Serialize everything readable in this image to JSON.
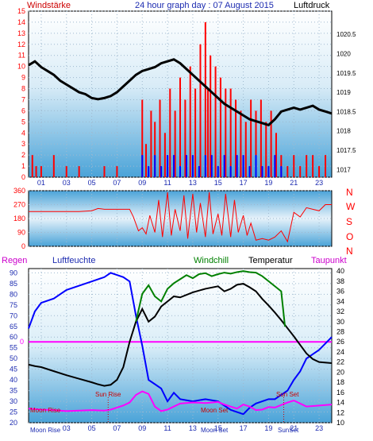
{
  "header": {
    "left_label": "Windstärke",
    "title": "24 hour graph day : 07 August 2015",
    "right_label": "Luftdruck"
  },
  "colors": {
    "red": "#ff0000",
    "blue": "#0000ff",
    "black": "#000000",
    "green": "#008000",
    "magenta": "#ff00ff",
    "axis_blue": "#1c2bb0"
  },
  "chart_data": [
    {
      "type": "line",
      "title": "24 hour graph day : 07 August 2015",
      "y_left_label": "Windstärke",
      "y_right_label": "Luftdruck",
      "x_ticks": [
        "01",
        "03",
        "05",
        "07",
        "09",
        "11",
        "13",
        "15",
        "17",
        "19",
        "21",
        "23"
      ],
      "y_left_ticks": [
        0,
        1,
        2,
        3,
        4,
        5,
        6,
        7,
        8,
        9,
        10,
        11,
        12,
        13,
        14,
        15
      ],
      "ylim_left": [
        0,
        15
      ],
      "y_right_ticks": [
        1017,
        1017.5,
        1018,
        1018.5,
        1019,
        1019.5,
        1020,
        1020.5
      ],
      "ylim_right": [
        1016.8,
        1021.1
      ],
      "xlim": [
        0,
        24
      ],
      "grid": true,
      "series": [
        {
          "role": "pressure",
          "color": "#000000",
          "axis": "right",
          "x": [
            0,
            0.5,
            1,
            1.5,
            2,
            2.5,
            3,
            3.5,
            4,
            4.5,
            5,
            5.5,
            6,
            6.5,
            7,
            7.5,
            8,
            8.5,
            9,
            9.5,
            10,
            10.5,
            11,
            11.5,
            12,
            12.5,
            13,
            13.5,
            14,
            14.5,
            15,
            15.5,
            16,
            16.5,
            17,
            17.5,
            18,
            18.5,
            19,
            19.5,
            20,
            20.5,
            21,
            21.5,
            22,
            22.5,
            23,
            23.5,
            24
          ],
          "y": [
            1019.7,
            1019.8,
            1019.65,
            1019.55,
            1019.45,
            1019.3,
            1019.2,
            1019.1,
            1019.0,
            1018.95,
            1018.85,
            1018.82,
            1018.85,
            1018.9,
            1019.0,
            1019.15,
            1019.3,
            1019.45,
            1019.55,
            1019.6,
            1019.65,
            1019.75,
            1019.8,
            1019.85,
            1019.75,
            1019.6,
            1019.45,
            1019.3,
            1019.15,
            1019.0,
            1018.85,
            1018.7,
            1018.6,
            1018.5,
            1018.4,
            1018.3,
            1018.25,
            1018.2,
            1018.15,
            1018.3,
            1018.5,
            1018.55,
            1018.6,
            1018.55,
            1018.6,
            1018.65,
            1018.55,
            1018.5,
            1018.45
          ]
        },
        {
          "role": "wind-gust",
          "color": "#ff0000",
          "axis": "left",
          "x": [
            0.3,
            0.6,
            1,
            2,
            3,
            4,
            5,
            6,
            7,
            8,
            9,
            9.3,
            9.7,
            10,
            10.4,
            10.8,
            11.2,
            11.6,
            12,
            12.4,
            12.8,
            13.2,
            13.6,
            14,
            14.2,
            14.4,
            14.8,
            15.2,
            15.6,
            16,
            16.4,
            16.8,
            17.2,
            17.6,
            18,
            18.4,
            18.8,
            19.2,
            19.6,
            20,
            20.5,
            21,
            21.5,
            22,
            22.5,
            23,
            23.5
          ],
          "y": [
            2,
            1,
            1,
            2,
            1,
            1,
            0,
            1,
            1,
            0,
            7,
            3,
            6,
            5,
            7,
            4,
            8,
            6,
            9,
            7,
            10,
            8,
            12,
            14,
            8,
            11,
            10,
            9,
            8,
            8,
            7,
            6,
            5,
            7,
            6,
            7,
            5,
            6,
            4,
            2,
            1,
            2,
            1,
            2,
            2,
            1,
            2
          ]
        },
        {
          "role": "wind-speed",
          "color": "#0000ff",
          "axis": "left",
          "x": [
            9,
            9.5,
            10,
            10.5,
            11,
            11.5,
            12,
            12.5,
            13,
            13.5,
            14,
            14.5,
            15,
            15.5,
            16,
            16.5,
            17,
            17.5,
            18,
            18.5,
            19,
            19.5,
            20,
            20.5,
            21
          ],
          "y": [
            2,
            1,
            2,
            1,
            2,
            2,
            1,
            2,
            2,
            1,
            2,
            2,
            1,
            2,
            1,
            2,
            2,
            1,
            2,
            1,
            1,
            2,
            1,
            0,
            0
          ]
        }
      ]
    },
    {
      "type": "line",
      "title": "",
      "y_left_ticks": [
        0,
        90,
        180,
        270,
        360
      ],
      "ylim": [
        0,
        360
      ],
      "right_labels": [
        "N",
        "W",
        "S",
        "O",
        "N"
      ],
      "x_ticks": [],
      "xlim": [
        0,
        24
      ],
      "grid": true,
      "series": [
        {
          "role": "wind-direction",
          "color": "#ff0000",
          "x": [
            0,
            1,
            2,
            3,
            4,
            5,
            5.5,
            6,
            7,
            8,
            8.3,
            8.7,
            9,
            9.3,
            9.6,
            10,
            10.3,
            10.6,
            11,
            11.3,
            11.6,
            12,
            12.3,
            12.6,
            13,
            13.3,
            13.6,
            14,
            14.3,
            14.6,
            15,
            15.3,
            15.6,
            16,
            16.3,
            16.6,
            17,
            17.3,
            17.6,
            18,
            18.5,
            19,
            19.5,
            20,
            20.5,
            21,
            21.5,
            22,
            22.5,
            23,
            23.5,
            24
          ],
          "y": [
            225,
            225,
            225,
            225,
            225,
            230,
            245,
            240,
            240,
            240,
            190,
            100,
            120,
            80,
            200,
            90,
            300,
            60,
            350,
            70,
            240,
            100,
            330,
            50,
            340,
            90,
            280,
            60,
            350,
            80,
            210,
            70,
            340,
            60,
            300,
            90,
            200,
            70,
            150,
            40,
            50,
            40,
            60,
            100,
            30,
            220,
            190,
            250,
            240,
            230,
            270,
            270
          ]
        }
      ]
    },
    {
      "type": "line",
      "title": "",
      "labels": [
        "Regen",
        "Luftfeuchte",
        "Windchill",
        "Temperatur",
        "Taupunkt"
      ],
      "left_ticks": [
        20,
        25,
        30,
        35,
        40,
        45,
        50,
        55,
        60,
        65,
        70,
        75,
        80,
        85,
        90
      ],
      "ylim_left": [
        20,
        92
      ],
      "right_ticks": [
        10,
        12,
        14,
        16,
        18,
        20,
        22,
        24,
        26,
        28,
        30,
        32,
        34,
        36,
        38,
        40
      ],
      "ylim_right": [
        10,
        40.5
      ],
      "rain_label": "0",
      "x_ticks": [
        "03",
        "05",
        "07",
        "09",
        "11",
        "13",
        "15",
        "17",
        "19",
        "21",
        "23"
      ],
      "xlim": [
        0,
        24
      ],
      "grid": true,
      "annotations": [
        "Sun Rise",
        "Sun Set",
        "Moon Rise",
        "Moon Set",
        "Moon Rise",
        "Moon Set",
        "Sun Rise",
        "Sun Set"
      ],
      "series": [
        {
          "name": "Luftfeuchte",
          "color": "#0000ff",
          "axis": "left",
          "x": [
            0,
            0.5,
            1,
            2,
            3,
            4,
            5,
            6,
            6.5,
            7,
            7.5,
            8,
            8.5,
            9,
            9.5,
            10,
            10.5,
            11,
            11.5,
            12,
            13,
            14,
            15,
            15.5,
            16,
            16.5,
            17,
            17.5,
            18,
            18.5,
            19,
            19.5,
            20,
            20.5,
            21,
            21.5,
            22,
            23,
            24
          ],
          "y": [
            64,
            72,
            76,
            78,
            82,
            84,
            86,
            88,
            90,
            89,
            88,
            86,
            70,
            56,
            40,
            38,
            36,
            30,
            34,
            31,
            30,
            31,
            30,
            28,
            26,
            25,
            24,
            27,
            29,
            30,
            31,
            31,
            33,
            35,
            40,
            44,
            50,
            54,
            60
          ]
        },
        {
          "name": "Temperatur",
          "color": "#000000",
          "axis": "right",
          "x": [
            0,
            0.5,
            1,
            2,
            3,
            4,
            5,
            5.5,
            6,
            6.5,
            7,
            7.5,
            8,
            8.5,
            9,
            9.5,
            10,
            10.5,
            11,
            11.5,
            12,
            13,
            14,
            15,
            15.5,
            16,
            16.5,
            17,
            17.5,
            18,
            18.5,
            19,
            19.5,
            20,
            20.5,
            21,
            21.5,
            22,
            22.5,
            23,
            24
          ],
          "y": [
            21.5,
            21.2,
            21.0,
            20.2,
            19.4,
            18.7,
            18.0,
            17.6,
            17.3,
            17.5,
            18.5,
            21.0,
            26.0,
            30.0,
            32.5,
            30.0,
            31.0,
            33.0,
            34.0,
            35.0,
            34.8,
            35.8,
            36.5,
            37.0,
            36.0,
            36.5,
            37.3,
            37.5,
            36.8,
            36.0,
            34.5,
            33.2,
            31.8,
            30.3,
            28.7,
            27.1,
            25.4,
            23.7,
            22.6,
            22.0,
            21.8
          ]
        },
        {
          "name": "Windchill",
          "color": "#008000",
          "axis": "right",
          "x": [
            8.5,
            9,
            9.5,
            10,
            10.5,
            11,
            11.5,
            12,
            12.5,
            13,
            13.5,
            14,
            14.5,
            15,
            15.5,
            16,
            16.5,
            17,
            17.5,
            18,
            18.5,
            19,
            19.5,
            20,
            20.3
          ],
          "y": [
            30.0,
            35.5,
            37.2,
            35.0,
            34.0,
            36.5,
            37.6,
            38.4,
            39.2,
            38.6,
            39.4,
            39.6,
            39.0,
            39.4,
            39.7,
            39.5,
            39.8,
            40.0,
            39.8,
            39.7,
            39.0,
            38.0,
            37.0,
            36.0,
            29.0
          ]
        },
        {
          "name": "Taupunkt",
          "color": "#ff00ff",
          "axis": "right",
          "x": [
            0,
            1,
            2,
            3,
            4,
            5,
            6,
            6.5,
            7,
            7.5,
            8,
            8.5,
            9,
            9.5,
            10,
            10.5,
            11,
            12,
            13,
            14,
            15,
            15.5,
            16,
            16.5,
            17,
            17.5,
            18,
            18.5,
            19,
            19.5,
            20,
            20.5,
            21,
            22,
            23,
            24
          ],
          "y": [
            12.8,
            12.6,
            12.5,
            12.3,
            12.4,
            12.5,
            12.4,
            12.6,
            13.0,
            13.4,
            14.0,
            15.5,
            16.2,
            15.7,
            13.2,
            12.3,
            12.6,
            13.8,
            14.0,
            13.9,
            14.1,
            13.6,
            13.2,
            12.8,
            13.6,
            13.2,
            12.5,
            12.6,
            13.1,
            13.0,
            13.5,
            14.0,
            14.4,
            13.2,
            13.4,
            13.6
          ]
        }
      ]
    }
  ]
}
